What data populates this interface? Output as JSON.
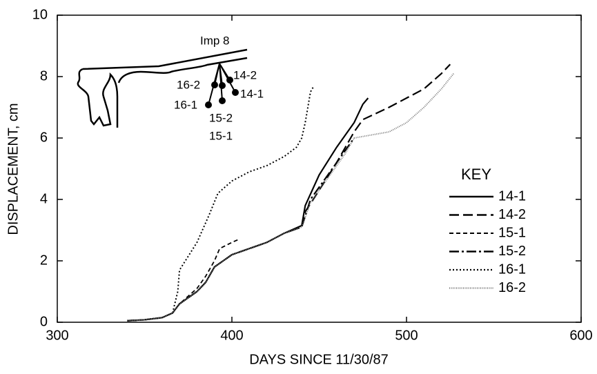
{
  "chart_data": {
    "type": "line",
    "x_label": "DAYS SINCE 11/30/87",
    "y_label": "DISPLACEMENT, cm",
    "xlim": [
      300,
      600
    ],
    "xticks": [
      300,
      400,
      500,
      600
    ],
    "ylim": [
      0,
      10
    ],
    "yticks": [
      0,
      2,
      4,
      6,
      8,
      10
    ],
    "legend_title": "KEY",
    "legend": "right",
    "annotations": [
      "Imp 8",
      "16-2",
      "14-2",
      "14-1",
      "16-1",
      "15-2",
      "15-1"
    ],
    "series": [
      {
        "name": "14-1",
        "color": "#000000",
        "x": [
          340,
          350,
          360,
          366,
          370,
          380,
          385,
          390,
          395,
          400,
          410,
          420,
          430,
          440,
          442,
          450,
          460,
          470,
          475,
          478
        ],
        "values": [
          0.05,
          0.08,
          0.15,
          0.3,
          0.6,
          1.0,
          1.3,
          1.8,
          2.0,
          2.2,
          2.4,
          2.6,
          2.9,
          3.15,
          3.8,
          4.8,
          5.7,
          6.5,
          7.1,
          7.3
        ]
      },
      {
        "name": "14-2",
        "color": "#000000",
        "x": [
          340,
          350,
          360,
          366,
          370,
          380,
          385,
          390,
          395,
          400,
          410,
          420,
          430,
          440,
          442,
          450,
          460,
          470,
          475,
          490,
          510,
          520,
          525
        ],
        "values": [
          0.05,
          0.08,
          0.15,
          0.3,
          0.6,
          1.0,
          1.3,
          1.8,
          2.0,
          2.2,
          2.4,
          2.6,
          2.9,
          3.1,
          3.6,
          4.3,
          5.2,
          6.2,
          6.6,
          7.0,
          7.6,
          8.1,
          8.4
        ]
      },
      {
        "name": "15-1",
        "color": "#000000",
        "x": [
          366,
          370,
          380,
          385,
          390,
          393,
          400,
          404
        ],
        "values": [
          0.3,
          0.6,
          1.1,
          1.5,
          2.0,
          2.4,
          2.6,
          2.7
        ]
      },
      {
        "name": "15-2",
        "color": "#000000",
        "x": [
          340,
          350,
          360,
          366,
          370,
          380,
          385,
          390,
          395,
          400,
          410,
          420,
          430,
          440,
          445,
          455,
          465,
          470
        ],
        "values": [
          0.05,
          0.08,
          0.15,
          0.3,
          0.6,
          1.0,
          1.3,
          1.8,
          2.0,
          2.2,
          2.4,
          2.6,
          2.9,
          3.1,
          4.0,
          4.8,
          5.6,
          6.0
        ]
      },
      {
        "name": "16-1",
        "color": "#000000",
        "x": [
          366,
          369,
          370,
          380,
          387,
          392,
          400,
          410,
          420,
          430,
          437,
          440,
          442,
          445,
          447
        ],
        "values": [
          0.3,
          1.0,
          1.7,
          2.6,
          3.5,
          4.2,
          4.6,
          4.9,
          5.1,
          5.4,
          5.7,
          6.0,
          6.5,
          7.5,
          7.7
        ]
      },
      {
        "name": "16-2",
        "color": "#777777",
        "x": [
          340,
          350,
          360,
          366,
          370,
          380,
          385,
          390,
          395,
          400,
          410,
          420,
          430,
          440,
          445,
          455,
          465,
          470,
          480,
          490,
          500,
          510,
          520,
          527
        ],
        "values": [
          0.05,
          0.08,
          0.15,
          0.3,
          0.6,
          1.0,
          1.3,
          1.8,
          2.0,
          2.2,
          2.4,
          2.6,
          2.9,
          3.1,
          3.9,
          4.7,
          5.5,
          6.0,
          6.1,
          6.2,
          6.5,
          7.0,
          7.6,
          8.1
        ]
      }
    ]
  }
}
